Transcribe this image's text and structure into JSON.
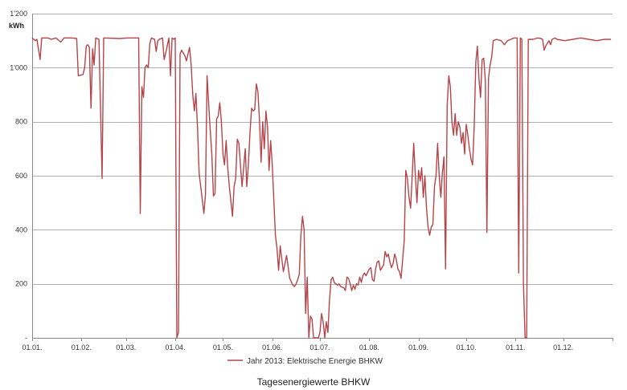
{
  "chart_data": {
    "type": "line",
    "unit_label": "kWh",
    "ylim": [
      0,
      1200
    ],
    "y_ticks": [
      0,
      200,
      400,
      600,
      800,
      1000,
      1200
    ],
    "y_tick_labels": [
      "-",
      "200",
      "400",
      "600",
      "800",
      "1'000",
      "1'200"
    ],
    "x_tick_days": [
      0,
      31,
      59,
      90,
      120,
      151,
      181,
      212,
      243,
      273,
      304,
      334,
      365
    ],
    "x_tick_labels": [
      "01.01.",
      "01.02.",
      "01.03.",
      "01.04.",
      "01.05.",
      "01.06.",
      "01.07.",
      "01.08.",
      "01.09.",
      "01.10.",
      "01.11.",
      "01.12.",
      ""
    ],
    "grid": true,
    "legend_position": "bottom",
    "caption": "Tagesenergiewerte BHKW",
    "colors": {
      "series": "#b5454a",
      "grid": "#b0b0b0",
      "axis": "#888888"
    },
    "series": [
      {
        "name": "Jahr 2013: Elektrische Energie BHKW",
        "points": [
          [
            0,
            1110
          ],
          [
            2,
            1100
          ],
          [
            3,
            1105
          ],
          [
            5,
            1030
          ],
          [
            6,
            1110
          ],
          [
            10,
            1110
          ],
          [
            12,
            1105
          ],
          [
            15,
            1110
          ],
          [
            16,
            1105
          ],
          [
            18,
            1095
          ],
          [
            20,
            1110
          ],
          [
            25,
            1110
          ],
          [
            28,
            1108
          ],
          [
            29,
            970
          ],
          [
            32,
            975
          ],
          [
            33,
            1000
          ],
          [
            34,
            1080
          ],
          [
            35,
            1085
          ],
          [
            36,
            1075
          ],
          [
            37,
            850
          ],
          [
            38,
            1070
          ],
          [
            39,
            1010
          ],
          [
            40,
            1110
          ],
          [
            42,
            1105
          ],
          [
            44,
            590
          ],
          [
            45,
            1110
          ],
          [
            55,
            1108
          ],
          [
            60,
            1110
          ],
          [
            61,
            1110
          ],
          [
            62,
            1110
          ],
          [
            63,
            1110
          ],
          [
            67,
            1110
          ],
          [
            68,
            460
          ],
          [
            69,
            930
          ],
          [
            70,
            890
          ],
          [
            71,
            1000
          ],
          [
            72,
            1010
          ],
          [
            73,
            1000
          ],
          [
            74,
            1090
          ],
          [
            75,
            1110
          ],
          [
            77,
            1105
          ],
          [
            78,
            1060
          ],
          [
            79,
            1100
          ],
          [
            80,
            1105
          ],
          [
            82,
            1110
          ],
          [
            83,
            1030
          ],
          [
            84,
            1055
          ],
          [
            86,
            1110
          ],
          [
            87,
            970
          ],
          [
            88,
            1110
          ],
          [
            89,
            1105
          ],
          [
            90,
            1110
          ],
          [
            91,
            0
          ],
          [
            92,
            20
          ],
          [
            93,
            1050
          ],
          [
            94,
            1065
          ],
          [
            96,
            1045
          ],
          [
            97,
            1025
          ],
          [
            99,
            1075
          ],
          [
            100,
            1010
          ],
          [
            101,
            900
          ],
          [
            102,
            840
          ],
          [
            103,
            905
          ],
          [
            104,
            780
          ],
          [
            105,
            610
          ],
          [
            107,
            510
          ],
          [
            108,
            460
          ],
          [
            109,
            530
          ],
          [
            110,
            970
          ],
          [
            112,
            770
          ],
          [
            113,
            680
          ],
          [
            114,
            525
          ],
          [
            115,
            535
          ],
          [
            116,
            810
          ],
          [
            117,
            820
          ],
          [
            118,
            870
          ],
          [
            119,
            800
          ],
          [
            120,
            680
          ],
          [
            121,
            640
          ],
          [
            122,
            730
          ],
          [
            123,
            630
          ],
          [
            124,
            560
          ],
          [
            126,
            450
          ],
          [
            127,
            560
          ],
          [
            128,
            590
          ],
          [
            129,
            735
          ],
          [
            130,
            720
          ],
          [
            131,
            640
          ],
          [
            132,
            560
          ],
          [
            133,
            630
          ],
          [
            134,
            700
          ],
          [
            135,
            560
          ],
          [
            136,
            640
          ],
          [
            137,
            760
          ],
          [
            138,
            850
          ],
          [
            139,
            840
          ],
          [
            140,
            845
          ],
          [
            141,
            940
          ],
          [
            142,
            910
          ],
          [
            143,
            800
          ],
          [
            144,
            650
          ],
          [
            145,
            800
          ],
          [
            146,
            700
          ],
          [
            147,
            840
          ],
          [
            148,
            780
          ],
          [
            149,
            620
          ],
          [
            150,
            730
          ],
          [
            151,
            640
          ],
          [
            153,
            380
          ],
          [
            154,
            330
          ],
          [
            155,
            250
          ],
          [
            156,
            340
          ],
          [
            158,
            245
          ],
          [
            160,
            305
          ],
          [
            162,
            220
          ],
          [
            164,
            195
          ],
          [
            165,
            190
          ],
          [
            166,
            200
          ],
          [
            167,
            215
          ],
          [
            168,
            235
          ],
          [
            169,
            380
          ],
          [
            170,
            450
          ],
          [
            171,
            400
          ],
          [
            172,
            90
          ],
          [
            173,
            225
          ],
          [
            174,
            0
          ],
          [
            175,
            80
          ],
          [
            176,
            70
          ],
          [
            177,
            0
          ],
          [
            180,
            0
          ],
          [
            181,
            20
          ],
          [
            182,
            90
          ],
          [
            183,
            60
          ],
          [
            184,
            0
          ],
          [
            185,
            60
          ],
          [
            186,
            20
          ],
          [
            187,
            140
          ],
          [
            188,
            215
          ],
          [
            189,
            225
          ],
          [
            190,
            205
          ],
          [
            191,
            200
          ],
          [
            192,
            195
          ],
          [
            193,
            200
          ],
          [
            194,
            190
          ],
          [
            196,
            185
          ],
          [
            197,
            175
          ],
          [
            198,
            225
          ],
          [
            199,
            220
          ],
          [
            200,
            200
          ],
          [
            201,
            175
          ],
          [
            202,
            195
          ],
          [
            203,
            180
          ],
          [
            204,
            200
          ],
          [
            205,
            195
          ],
          [
            206,
            225
          ],
          [
            207,
            205
          ],
          [
            208,
            230
          ],
          [
            209,
            240
          ],
          [
            210,
            230
          ],
          [
            212,
            255
          ],
          [
            213,
            260
          ],
          [
            214,
            215
          ],
          [
            215,
            210
          ],
          [
            216,
            255
          ],
          [
            217,
            280
          ],
          [
            218,
            285
          ],
          [
            219,
            250
          ],
          [
            220,
            260
          ],
          [
            221,
            270
          ],
          [
            222,
            320
          ],
          [
            223,
            300
          ],
          [
            224,
            310
          ],
          [
            225,
            280
          ],
          [
            226,
            260
          ],
          [
            227,
            275
          ],
          [
            228,
            310
          ],
          [
            229,
            290
          ],
          [
            230,
            255
          ],
          [
            231,
            245
          ],
          [
            232,
            220
          ],
          [
            233,
            290
          ],
          [
            234,
            360
          ],
          [
            235,
            620
          ],
          [
            236,
            590
          ],
          [
            237,
            520
          ],
          [
            238,
            480
          ],
          [
            239,
            600
          ],
          [
            240,
            720
          ],
          [
            241,
            600
          ],
          [
            242,
            500
          ],
          [
            243,
            620
          ],
          [
            244,
            580
          ],
          [
            245,
            630
          ],
          [
            246,
            520
          ],
          [
            247,
            600
          ],
          [
            248,
            480
          ],
          [
            249,
            410
          ],
          [
            250,
            380
          ],
          [
            251,
            410
          ],
          [
            252,
            420
          ],
          [
            253,
            560
          ],
          [
            254,
            600
          ],
          [
            255,
            720
          ],
          [
            256,
            600
          ],
          [
            257,
            520
          ],
          [
            258,
            610
          ],
          [
            259,
            670
          ],
          [
            260,
            255
          ],
          [
            261,
            860
          ],
          [
            262,
            970
          ],
          [
            263,
            930
          ],
          [
            264,
            800
          ],
          [
            265,
            750
          ],
          [
            266,
            830
          ],
          [
            267,
            750
          ],
          [
            268,
            800
          ],
          [
            269,
            780
          ],
          [
            270,
            720
          ],
          [
            271,
            760
          ],
          [
            272,
            680
          ],
          [
            273,
            790
          ],
          [
            274,
            750
          ],
          [
            275,
            700
          ],
          [
            276,
            660
          ],
          [
            277,
            640
          ],
          [
            278,
            780
          ],
          [
            279,
            1020
          ],
          [
            280,
            1080
          ],
          [
            281,
            960
          ],
          [
            282,
            890
          ],
          [
            283,
            1030
          ],
          [
            284,
            1035
          ],
          [
            285,
            950
          ],
          [
            286,
            390
          ],
          [
            287,
            960
          ],
          [
            288,
            1010
          ],
          [
            289,
            1040
          ],
          [
            290,
            1100
          ],
          [
            292,
            1105
          ],
          [
            295,
            1100
          ],
          [
            297,
            1085
          ],
          [
            299,
            1100
          ],
          [
            301,
            1105
          ],
          [
            303,
            1110
          ],
          [
            304,
            1110
          ],
          [
            305,
            1110
          ],
          [
            306,
            240
          ],
          [
            307,
            1110
          ],
          [
            308,
            1105
          ],
          [
            309,
            200
          ],
          [
            310,
            0
          ],
          [
            311,
            0
          ],
          [
            312,
            1105
          ],
          [
            315,
            1105
          ],
          [
            318,
            1110
          ],
          [
            320,
            1108
          ],
          [
            321,
            1105
          ],
          [
            322,
            1065
          ],
          [
            323,
            1080
          ],
          [
            324,
            1090
          ],
          [
            325,
            1100
          ],
          [
            326,
            1085
          ],
          [
            327,
            1105
          ],
          [
            329,
            1110
          ],
          [
            330,
            1105
          ],
          [
            335,
            1100
          ],
          [
            340,
            1105
          ],
          [
            345,
            1110
          ],
          [
            350,
            1105
          ],
          [
            355,
            1100
          ],
          [
            360,
            1105
          ],
          [
            364,
            1105
          ]
        ]
      }
    ]
  }
}
